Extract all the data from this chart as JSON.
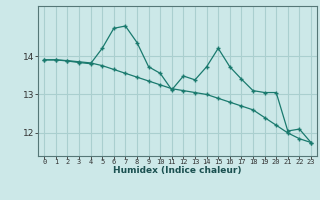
{
  "xlabel": "Humidex (Indice chaleur)",
  "x": [
    0,
    1,
    2,
    3,
    4,
    5,
    6,
    7,
    8,
    9,
    10,
    11,
    12,
    13,
    14,
    15,
    16,
    17,
    18,
    19,
    20,
    21,
    22,
    23
  ],
  "y_jagged": [
    13.9,
    13.9,
    13.87,
    13.83,
    13.8,
    14.2,
    14.72,
    14.78,
    14.35,
    13.72,
    13.55,
    13.12,
    13.48,
    13.38,
    13.72,
    14.2,
    13.72,
    13.4,
    13.1,
    13.05,
    13.05,
    12.05,
    12.1,
    11.75
  ],
  "y_smooth": [
    13.9,
    13.9,
    13.88,
    13.85,
    13.82,
    13.75,
    13.65,
    13.55,
    13.45,
    13.35,
    13.25,
    13.15,
    13.1,
    13.05,
    13.0,
    12.9,
    12.8,
    12.7,
    12.6,
    12.4,
    12.2,
    12.0,
    11.85,
    11.75
  ],
  "background_color": "#cce8e8",
  "grid_color": "#aacfcf",
  "line_color": "#1a7a6e",
  "yticks": [
    12,
    13,
    14
  ],
  "ylim": [
    11.4,
    15.3
  ],
  "xlim": [
    -0.5,
    23.5
  ]
}
